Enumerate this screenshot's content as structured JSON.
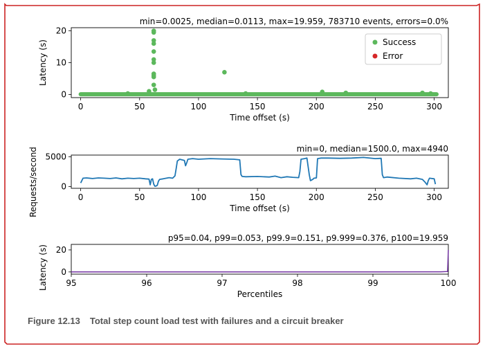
{
  "colors": {
    "success": "#5cb85c",
    "error": "#d62728",
    "line": "#1f77b4",
    "frame": "#cc2222",
    "caption": "#555555",
    "p100": "#7030a0"
  },
  "caption": {
    "number": "Figure 12.13",
    "text": "Total step count load test with failures and a circuit breaker"
  },
  "chart_data": [
    {
      "type": "scatter",
      "title": "min=0.0025, median=0.0113, max=19.959, 783710 events, errors=0.0%",
      "xlabel": "Time offset (s)",
      "ylabel": "Latency (s)",
      "xlim": [
        -8,
        312
      ],
      "ylim": [
        -1,
        21
      ],
      "xticks": [
        0,
        50,
        100,
        150,
        200,
        250,
        300
      ],
      "yticks": [
        0,
        10,
        20
      ],
      "legend": {
        "placement": "top-right",
        "entries": [
          "Success",
          "Error"
        ]
      },
      "baseline": {
        "from": 0,
        "to": 302,
        "value": 0.05
      },
      "series": [
        {
          "name": "Success",
          "points": [
            [
              62,
              20
            ],
            [
              62,
              19.5
            ],
            [
              62,
              17
            ],
            [
              62,
              16
            ],
            [
              62,
              13.5
            ],
            [
              62,
              11
            ],
            [
              62,
              10
            ],
            [
              62,
              6.5
            ],
            [
              62,
              6
            ],
            [
              62,
              5.5
            ],
            [
              62,
              3
            ],
            [
              63,
              1.5
            ],
            [
              58,
              1
            ],
            [
              122,
              7
            ],
            [
              205,
              0.8
            ],
            [
              225,
              0.5
            ],
            [
              290,
              0.5
            ],
            [
              297,
              0.3
            ],
            [
              40,
              0.3
            ],
            [
              140,
              0.3
            ]
          ]
        },
        {
          "name": "Error",
          "points": []
        }
      ]
    },
    {
      "type": "line",
      "title": "min=0, median=1500.0, max=4940",
      "xlabel": "Time offset (s)",
      "ylabel": "Requests/second",
      "xlim": [
        -8,
        312
      ],
      "ylim": [
        -300,
        5300
      ],
      "xticks": [
        0,
        50,
        100,
        150,
        200,
        250,
        300
      ],
      "yticks": [
        0,
        5000
      ],
      "series": [
        {
          "name": "",
          "points": [
            [
              0,
              600
            ],
            [
              2,
              1400
            ],
            [
              5,
              1450
            ],
            [
              10,
              1350
            ],
            [
              15,
              1450
            ],
            [
              20,
              1400
            ],
            [
              25,
              1350
            ],
            [
              30,
              1450
            ],
            [
              35,
              1300
            ],
            [
              40,
              1400
            ],
            [
              45,
              1350
            ],
            [
              50,
              1400
            ],
            [
              55,
              1300
            ],
            [
              58,
              1250
            ],
            [
              59,
              300
            ],
            [
              60,
              1200
            ],
            [
              61,
              1300
            ],
            [
              62,
              400
            ],
            [
              63,
              50
            ],
            [
              64,
              80
            ],
            [
              65,
              200
            ],
            [
              66,
              900
            ],
            [
              67,
              1200
            ],
            [
              70,
              1300
            ],
            [
              75,
              1500
            ],
            [
              78,
              1400
            ],
            [
              80,
              1800
            ],
            [
              81,
              3000
            ],
            [
              82,
              4300
            ],
            [
              84,
              4600
            ],
            [
              86,
              4500
            ],
            [
              88,
              4400
            ],
            [
              89,
              3500
            ],
            [
              90,
              4000
            ],
            [
              91,
              4600
            ],
            [
              95,
              4700
            ],
            [
              100,
              4600
            ],
            [
              110,
              4700
            ],
            [
              120,
              4650
            ],
            [
              130,
              4600
            ],
            [
              135,
              4500
            ],
            [
              136,
              2000
            ],
            [
              137,
              1700
            ],
            [
              140,
              1650
            ],
            [
              150,
              1700
            ],
            [
              160,
              1600
            ],
            [
              165,
              1750
            ],
            [
              170,
              1500
            ],
            [
              175,
              1650
            ],
            [
              180,
              1550
            ],
            [
              185,
              1500
            ],
            [
              186,
              2500
            ],
            [
              187,
              4600
            ],
            [
              190,
              4700
            ],
            [
              192,
              4800
            ],
            [
              194,
              2000
            ],
            [
              195,
              1000
            ],
            [
              197,
              1200
            ],
            [
              198,
              1400
            ],
            [
              200,
              1450
            ],
            [
              201,
              4700
            ],
            [
              204,
              4800
            ],
            [
              210,
              4800
            ],
            [
              220,
              4750
            ],
            [
              230,
              4800
            ],
            [
              240,
              4900
            ],
            [
              250,
              4700
            ],
            [
              255,
              4750
            ],
            [
              256,
              2000
            ],
            [
              257,
              1500
            ],
            [
              260,
              1600
            ],
            [
              270,
              1400
            ],
            [
              280,
              1300
            ],
            [
              285,
              1400
            ],
            [
              290,
              1200
            ],
            [
              292,
              800
            ],
            [
              294,
              300
            ],
            [
              295,
              1000
            ],
            [
              296,
              1400
            ],
            [
              300,
              1300
            ],
            [
              301,
              400
            ]
          ]
        }
      ]
    },
    {
      "type": "line",
      "title": "p95=0.04, p99=0.053, p99.9=0.151, p9.999=0.376, p100=19.959",
      "xlabel": "Percentiles",
      "ylabel": "Latency (s)",
      "xlim": [
        95,
        100
      ],
      "ylim": [
        -2,
        25
      ],
      "xticks": [
        95,
        96,
        97,
        98,
        99,
        100
      ],
      "yticks": [
        0,
        20
      ],
      "series": [
        {
          "name": "",
          "points": [
            [
              95,
              0.04
            ],
            [
              99,
              0.053
            ],
            [
              99.9,
              0.151
            ],
            [
              99.99,
              0.376
            ],
            [
              100,
              19.959
            ]
          ]
        }
      ]
    }
  ]
}
